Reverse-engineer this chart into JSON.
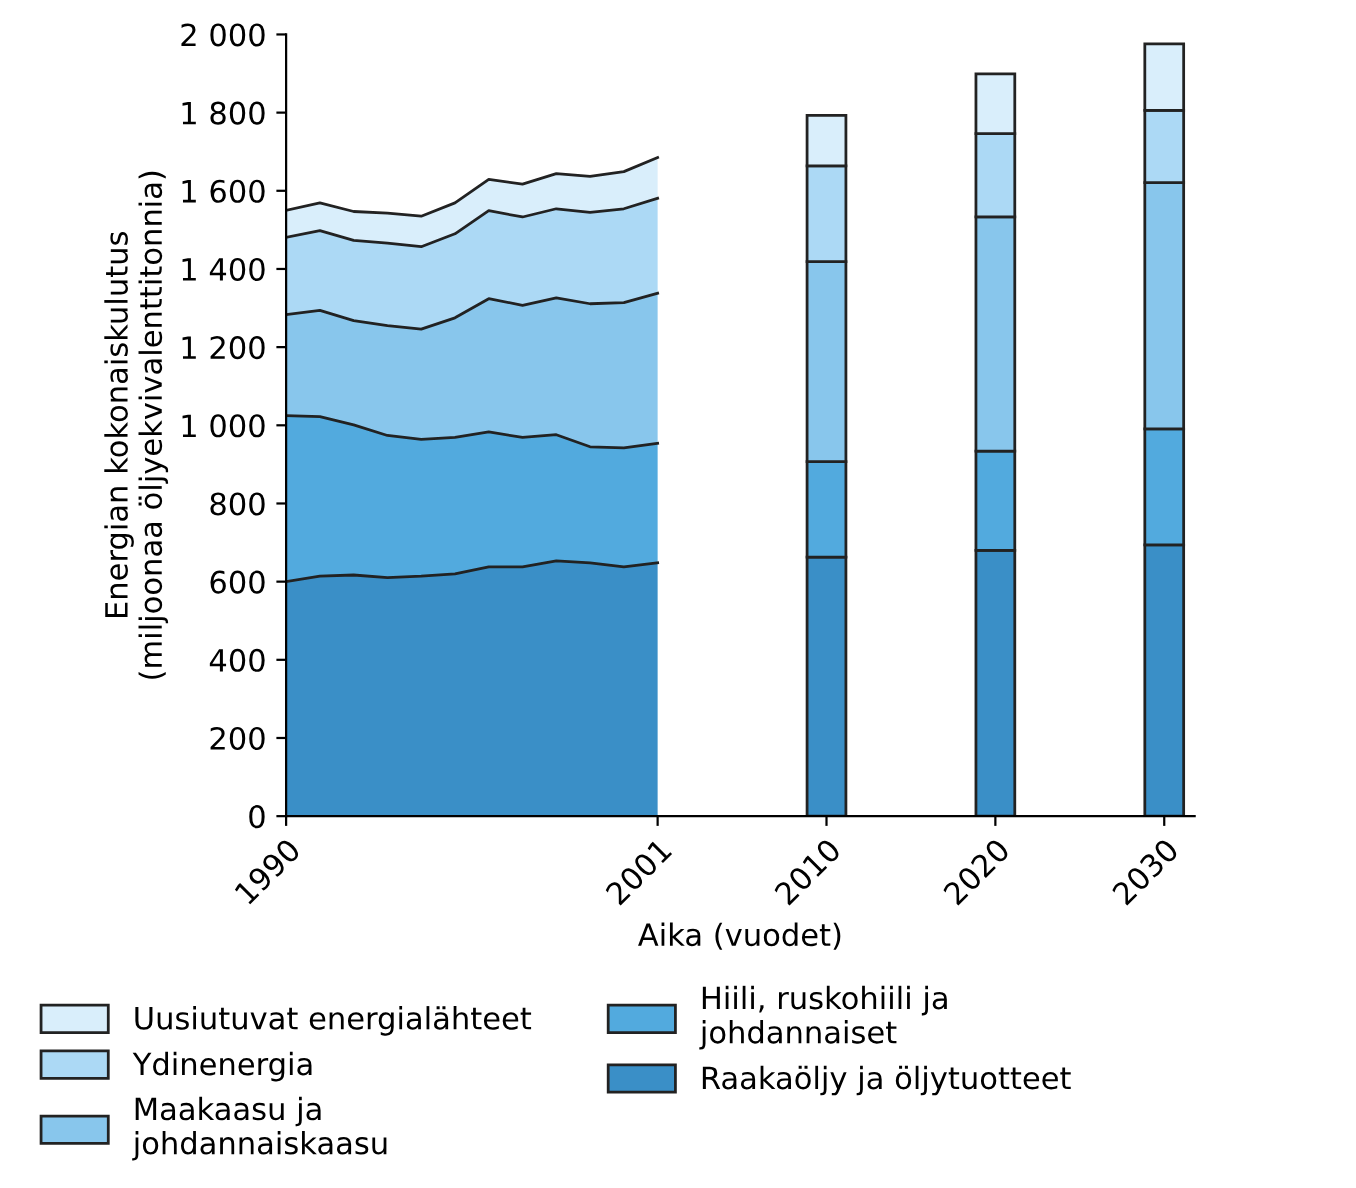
{
  "chart_data": {
    "type": "area",
    "stacked": true,
    "xlabel": "Aika (vuodet)",
    "ylabel": "Energian kokonaiskulutus\n(miljoonaa öljyekvivalenttitonnia)",
    "categories": [
      "1990",
      null,
      null,
      null,
      null,
      null,
      null,
      null,
      null,
      null,
      null,
      "2001",
      null,
      null,
      null,
      null,
      "2010",
      null,
      null,
      null,
      null,
      "2020",
      null,
      null,
      null,
      null,
      "2030"
    ],
    "ylim": [
      0,
      2000
    ],
    "yticks": [
      {
        "value": 0,
        "label": "0"
      },
      {
        "value": 200,
        "label": "200"
      },
      {
        "value": 400,
        "label": "400"
      },
      {
        "value": 600,
        "label": "600"
      },
      {
        "value": 800,
        "label": "800"
      },
      {
        "value": 1000,
        "label": "1 000"
      },
      {
        "value": 1200,
        "label": "1 200"
      },
      {
        "value": 1400,
        "label": "1 400"
      },
      {
        "value": 1600,
        "label": "1 600"
      },
      {
        "value": 1800,
        "label": "1 800"
      },
      {
        "value": 2000,
        "label": "2 000"
      }
    ],
    "grid": false,
    "legend": "bottom",
    "series": [
      {
        "name": "Raakaöljy ja öljytuotteet",
        "color": "#3a8fc7",
        "values": [
          600,
          614,
          617,
          610,
          614,
          620,
          638,
          638,
          653,
          648,
          638,
          648,
          null,
          null,
          null,
          null,
          null,
          null,
          null,
          null,
          null,
          null,
          null,
          null,
          null,
          null,
          null
        ]
      },
      {
        "name": "Hiili, ruskohiili ja johdannaiset",
        "color": "#52aade",
        "values": [
          425,
          408,
          384,
          364,
          350,
          349,
          345,
          331,
          323,
          297,
          304,
          306,
          null,
          null,
          null,
          null,
          null,
          null,
          null,
          null,
          null,
          null,
          null,
          null,
          null,
          null,
          null
        ]
      },
      {
        "name": "Maakaasu ja johdannaiskaasu",
        "color": "#88c6ec",
        "values": [
          258,
          272,
          267,
          281,
          282,
          306,
          341,
          338,
          350,
          366,
          372,
          384,
          null,
          null,
          null,
          null,
          null,
          null,
          null,
          null,
          null,
          null,
          null,
          null,
          null,
          null,
          null
        ]
      },
      {
        "name": "Ydinenergia",
        "color": "#acd9f5",
        "values": [
          198,
          204,
          205,
          211,
          211,
          215,
          225,
          226,
          228,
          234,
          240,
          243,
          null,
          null,
          null,
          null,
          null,
          null,
          null,
          null,
          null,
          null,
          null,
          null,
          null,
          null,
          null
        ]
      },
      {
        "name": "Uusiutuvat energialähteet",
        "color": "#d9eefb",
        "values": [
          69,
          71,
          74,
          77,
          78,
          79,
          80,
          84,
          90,
          92,
          95,
          104,
          null,
          null,
          null,
          null,
          null,
          null,
          null,
          null,
          null,
          null,
          null,
          null,
          null,
          null,
          null
        ]
      },
      {
        "type": "bar",
        "color": "#3a8fc7",
        "values": [
          null,
          null,
          null,
          null,
          null,
          null,
          null,
          null,
          null,
          null,
          null,
          null,
          null,
          null,
          null,
          null,
          663,
          null,
          null,
          null,
          null,
          680,
          null,
          null,
          null,
          null,
          694
        ]
      },
      {
        "type": "bar",
        "color": "#52aade",
        "values": [
          null,
          null,
          null,
          null,
          null,
          null,
          null,
          null,
          null,
          null,
          null,
          null,
          null,
          null,
          null,
          null,
          244,
          null,
          null,
          null,
          null,
          254,
          null,
          null,
          null,
          null,
          297
        ]
      },
      {
        "type": "bar",
        "color": "#88c6ec",
        "values": [
          null,
          null,
          null,
          null,
          null,
          null,
          null,
          null,
          null,
          null,
          null,
          null,
          null,
          null,
          null,
          null,
          512,
          null,
          null,
          null,
          null,
          599,
          null,
          null,
          null,
          null,
          630
        ]
      },
      {
        "type": "bar",
        "color": "#acd9f5",
        "values": [
          null,
          null,
          null,
          null,
          null,
          null,
          null,
          null,
          null,
          null,
          null,
          null,
          null,
          null,
          null,
          null,
          245,
          null,
          null,
          null,
          null,
          213,
          null,
          null,
          null,
          null,
          185
        ]
      },
      {
        "type": "bar",
        "color": "#d9eefb",
        "values": [
          null,
          null,
          null,
          null,
          null,
          null,
          null,
          null,
          null,
          null,
          null,
          null,
          null,
          null,
          null,
          null,
          129,
          null,
          null,
          null,
          null,
          153,
          null,
          null,
          null,
          null,
          170
        ]
      }
    ]
  }
}
